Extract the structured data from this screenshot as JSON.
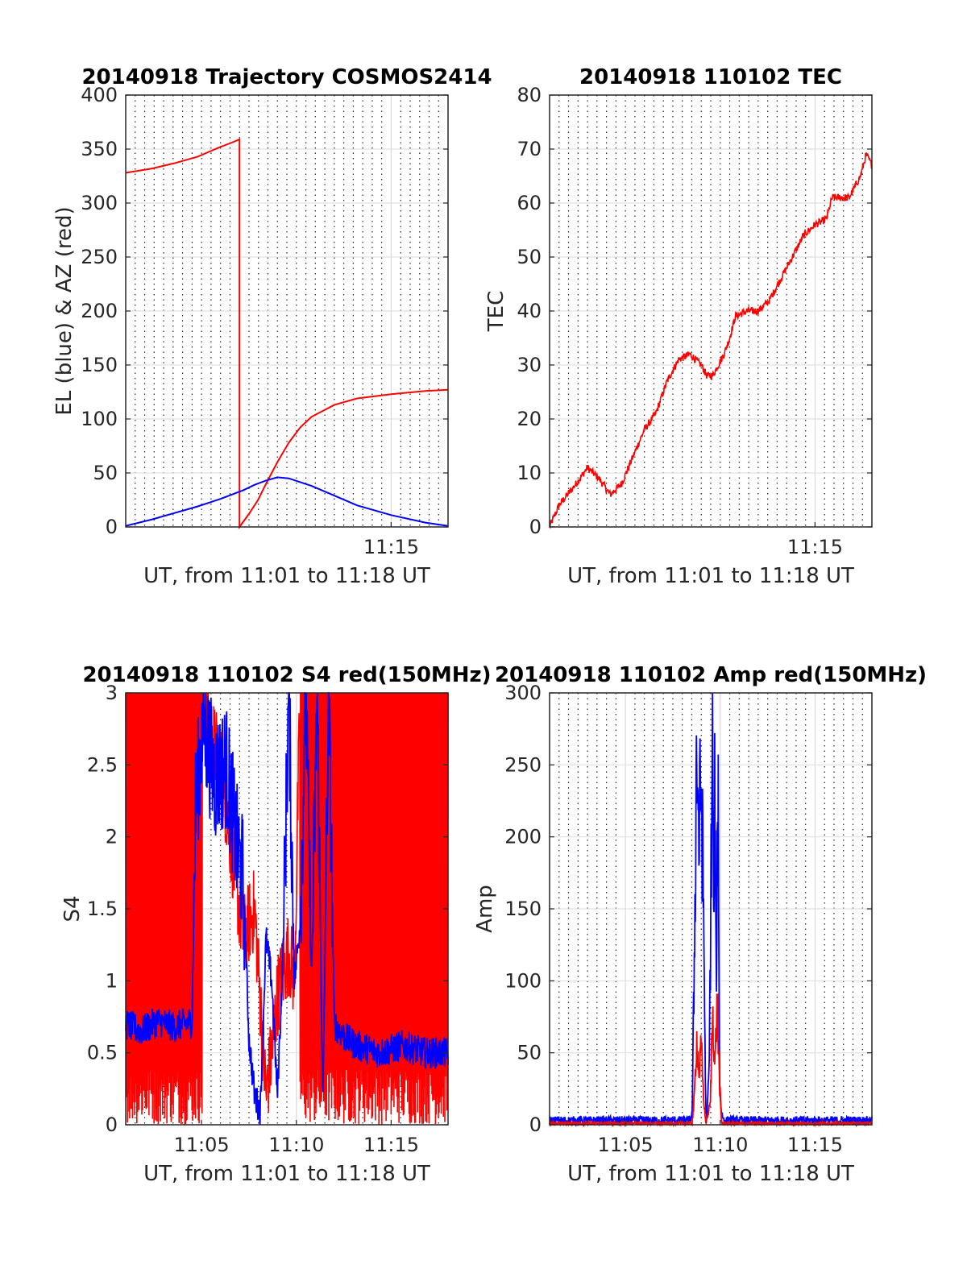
{
  "figure": {
    "colors": {
      "el": "#0000ff",
      "az": "#ff0000",
      "tec": "#ff0000",
      "s4_red": "#ff0000",
      "s4_blue": "#0000ff",
      "amp_red": "#ff0000",
      "amp_blue": "#0000ff"
    }
  },
  "chart_data": [
    {
      "id": "trajectory",
      "type": "line",
      "title": "20140918 Trajectory COSMOS2414",
      "xlabel": "UT, from 11:01 to 11:18 UT",
      "ylabel": "EL (blue) & AZ (red)",
      "xlim": [
        11.0167,
        11.3
      ],
      "ylim": [
        0,
        400
      ],
      "yticks": [
        0,
        50,
        100,
        150,
        200,
        250,
        300,
        350,
        400
      ],
      "xtick_labels": [
        {
          "x": 11.25,
          "label": "11:15"
        }
      ],
      "minor_x_grid": "every 30 s (dotted)",
      "grid": true,
      "series": [
        {
          "key": "az",
          "color": "#ff0000",
          "x": [
            11.0167,
            11.04,
            11.06,
            11.08,
            11.1,
            11.11,
            11.1167,
            11.1167,
            11.125,
            11.133,
            11.14,
            11.15,
            11.16,
            11.17,
            11.18,
            11.2,
            11.22,
            11.25,
            11.28,
            11.3
          ],
          "values": [
            328,
            332,
            337,
            343,
            352,
            356,
            359,
            0,
            12,
            25,
            40,
            60,
            78,
            92,
            102,
            113,
            119,
            123,
            126,
            127
          ]
        },
        {
          "key": "el",
          "color": "#0000ff",
          "x": [
            11.0167,
            11.04,
            11.06,
            11.08,
            11.1,
            11.12,
            11.13,
            11.14,
            11.15,
            11.16,
            11.18,
            11.2,
            11.22,
            11.25,
            11.28,
            11.3
          ],
          "values": [
            1,
            7,
            13,
            19,
            26,
            34,
            39,
            43,
            46,
            45,
            38,
            29,
            20,
            11,
            4,
            1
          ]
        }
      ]
    },
    {
      "id": "tec",
      "type": "line",
      "title": "20140918 110102 TEC",
      "xlabel": "UT, from 11:01 to 11:18 UT",
      "ylabel": "TEC",
      "xlim": [
        11.0167,
        11.3
      ],
      "ylim": [
        0,
        80
      ],
      "yticks": [
        0,
        10,
        20,
        30,
        40,
        50,
        60,
        70,
        80
      ],
      "xtick_labels": [
        {
          "x": 11.25,
          "label": "11:15"
        }
      ],
      "grid": true,
      "series": [
        {
          "key": "tec",
          "color": "#ff0000",
          "x": [
            11.0167,
            11.025,
            11.04,
            11.05,
            11.055,
            11.06,
            11.07,
            11.075,
            11.08,
            11.09,
            11.1,
            11.11,
            11.12,
            11.13,
            11.14,
            11.145,
            11.15,
            11.155,
            11.16,
            11.17,
            11.175,
            11.18,
            11.19,
            11.2,
            11.21,
            11.22,
            11.23,
            11.24,
            11.25,
            11.26,
            11.265,
            11.27,
            11.28,
            11.29,
            11.295,
            11.3
          ],
          "values": [
            0,
            4,
            8,
            11,
            10,
            9,
            6,
            7,
            8,
            13,
            18,
            21,
            27,
            31,
            32,
            31,
            30,
            28,
            28,
            32,
            35,
            39,
            40,
            40,
            42,
            46,
            50,
            54,
            56,
            57,
            61,
            61,
            61,
            65,
            69,
            67
          ]
        }
      ]
    },
    {
      "id": "s4",
      "type": "line",
      "title": "20140918 110102 S4 red(150MHz)",
      "xlabel": "UT, from 11:01 to 11:18 UT",
      "ylabel": "S4",
      "xlim": [
        11.0167,
        11.3
      ],
      "ylim": [
        0,
        3
      ],
      "yticks": [
        0,
        0.5,
        1,
        1.5,
        2,
        2.5,
        3
      ],
      "ytick_labels": [
        "0",
        "0.5",
        "1",
        "1.5",
        "2",
        "2.5",
        "3"
      ],
      "xtick_labels": [
        {
          "x": 11.0833,
          "label": "11:05"
        },
        {
          "x": 11.1667,
          "label": "11:10"
        },
        {
          "x": 11.25,
          "label": "11:15"
        }
      ],
      "grid": true,
      "series": [
        {
          "key": "s4_red",
          "color": "#ff0000",
          "note": "saturated noisy trace, fills 0-3 most of the pass",
          "x": [
            11.0167,
            11.08,
            11.1,
            11.12,
            11.13,
            11.14,
            11.145,
            11.15,
            11.16,
            11.165,
            11.17,
            11.18,
            11.3
          ],
          "values": [
            3,
            3,
            2.5,
            1.3,
            1.5,
            0.2,
            0.5,
            0.9,
            1.2,
            1,
            3,
            3,
            3
          ]
        },
        {
          "key": "s4_blue",
          "color": "#0000ff",
          "x": [
            11.0167,
            11.03,
            11.045,
            11.06,
            11.075,
            11.078,
            11.085,
            11.095,
            11.105,
            11.115,
            11.12,
            11.125,
            11.13,
            11.135,
            11.14,
            11.145,
            11.15,
            11.155,
            11.16,
            11.165,
            11.17,
            11.175,
            11.18,
            11.185,
            11.19,
            11.195,
            11.2,
            11.21,
            11.22,
            11.24,
            11.26,
            11.28,
            11.3
          ],
          "values": [
            0.7,
            0.65,
            0.72,
            0.68,
            0.72,
            2.2,
            2.8,
            2.4,
            2.5,
            1.9,
            1.7,
            0.6,
            0.2,
            0.1,
            1.3,
            1.0,
            0.2,
            1.2,
            3.0,
            1.0,
            1.4,
            3.0,
            1.0,
            3.0,
            0.1,
            3.0,
            0.7,
            0.6,
            0.55,
            0.5,
            0.55,
            0.5,
            0.5
          ]
        }
      ]
    },
    {
      "id": "amp",
      "type": "line",
      "title": "20140918 110102 Amp red(150MHz)",
      "xlabel": "UT, from 11:01 to 11:18 UT",
      "ylabel": "Amp",
      "xlim": [
        11.0167,
        11.3
      ],
      "ylim": [
        0,
        300
      ],
      "yticks": [
        0,
        50,
        100,
        150,
        200,
        250,
        300
      ],
      "xtick_labels": [
        {
          "x": 11.0833,
          "label": "11:05"
        },
        {
          "x": 11.1667,
          "label": "11:10"
        },
        {
          "x": 11.25,
          "label": "11:15"
        }
      ],
      "grid": true,
      "series": [
        {
          "key": "amp_blue",
          "color": "#0000ff",
          "x": [
            11.0167,
            11.14,
            11.142,
            11.144,
            11.146,
            11.148,
            11.15,
            11.152,
            11.154,
            11.155,
            11.157,
            11.159,
            11.16,
            11.161,
            11.162,
            11.163,
            11.165,
            11.166,
            11.168,
            11.17,
            11.172,
            11.3
          ],
          "values": [
            0,
            0,
            5,
            120,
            265,
            200,
            240,
            150,
            10,
            5,
            40,
            200,
            290,
            110,
            250,
            90,
            240,
            30,
            5,
            0,
            0,
            0
          ]
        },
        {
          "key": "amp_red",
          "color": "#ff0000",
          "x": [
            11.0167,
            11.142,
            11.144,
            11.146,
            11.148,
            11.15,
            11.152,
            11.154,
            11.158,
            11.16,
            11.162,
            11.164,
            11.166,
            11.168,
            11.3
          ],
          "values": [
            0,
            0,
            20,
            60,
            35,
            55,
            20,
            0,
            15,
            80,
            40,
            85,
            30,
            0,
            0
          ]
        }
      ]
    }
  ]
}
